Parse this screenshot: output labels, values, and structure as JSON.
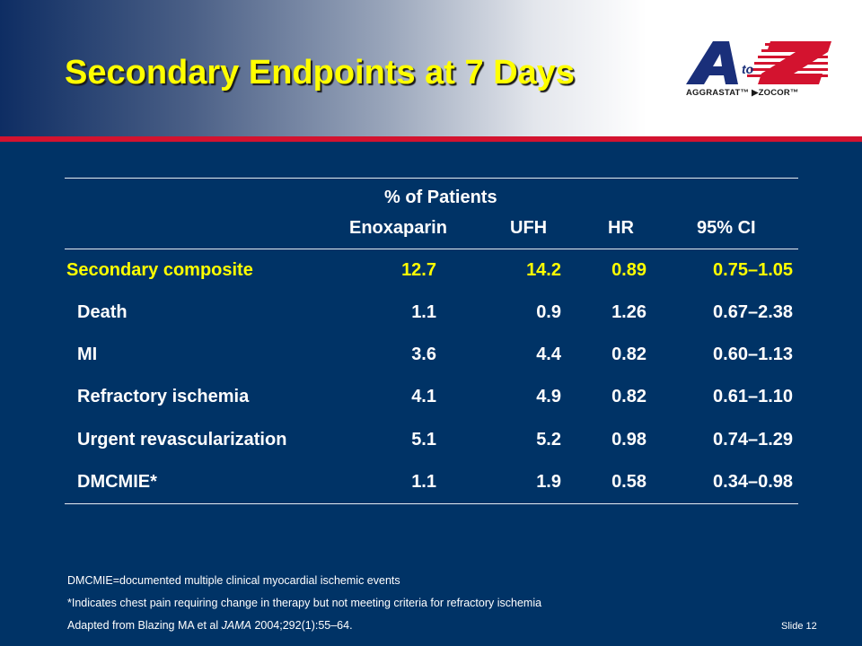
{
  "slide": {
    "title": "Secondary Endpoints at 7 Days",
    "slide_number": "Slide 12"
  },
  "logo": {
    "letters_a": "A",
    "letters_to": "to",
    "letters_z": "Z",
    "tagline": "AGGRASTAT™ ▶ZOCOR™"
  },
  "table": {
    "group_header": "% of Patients",
    "columns": [
      "Enoxaparin",
      "UFH",
      "HR",
      "95% CI"
    ],
    "rows": [
      {
        "label": "Secondary composite",
        "enox": "12.7",
        "ufh": "14.2",
        "hr": "0.89",
        "ci": "0.75–1.05"
      },
      {
        "label": "Death",
        "enox": "1.1",
        "ufh": "0.9",
        "hr": "1.26",
        "ci": "0.67–2.38"
      },
      {
        "label": "MI",
        "enox": "3.6",
        "ufh": "4.4",
        "hr": "0.82",
        "ci": "0.60–1.13"
      },
      {
        "label": "Refractory ischemia",
        "enox": "4.1",
        "ufh": "4.9",
        "hr": "0.82",
        "ci": "0.61–1.10"
      },
      {
        "label": "Urgent revascularization",
        "enox": "5.1",
        "ufh": "5.2",
        "hr": "0.98",
        "ci": "0.74–1.29"
      },
      {
        "label": "DMCMIE*",
        "enox": "1.1",
        "ufh": "1.9",
        "hr": "0.58",
        "ci": "0.34–0.98"
      }
    ]
  },
  "footnotes": {
    "abbrev": "DMCMIE=documented multiple clinical myocardial ischemic events",
    "asterisk": "*Indicates chest pain requiring change in therapy but not meeting criteria for refractory ischemia",
    "source_prefix": "Adapted from Blazing MA et al ",
    "source_journal": "JAMA",
    "source_suffix": " 2004;292(1):55–64."
  },
  "colors": {
    "background": "#003366",
    "title": "#ffff00",
    "accent_red": "#d3132f",
    "highlight_row": "#ffff00"
  }
}
